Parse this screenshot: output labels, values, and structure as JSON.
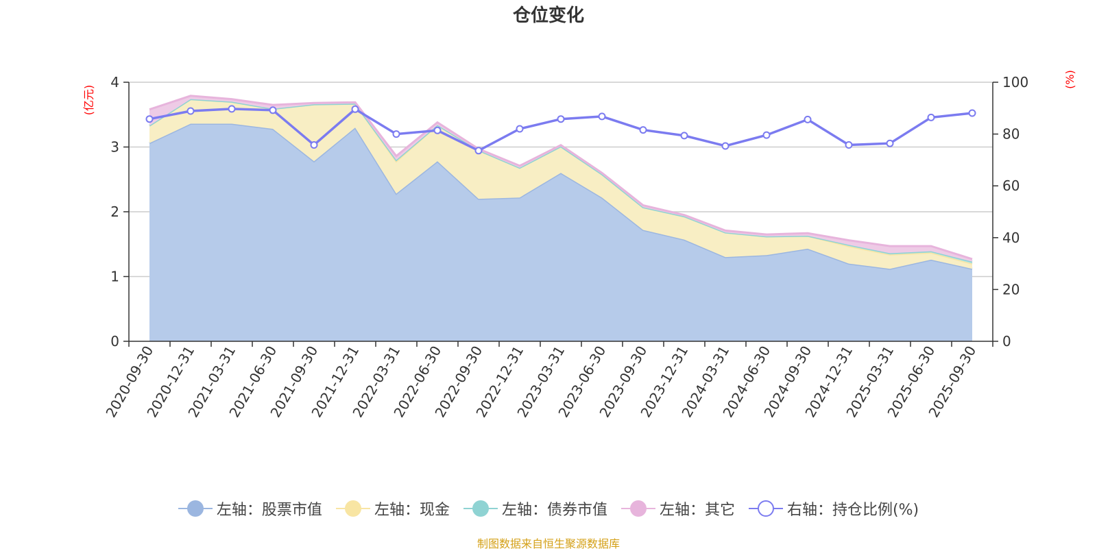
{
  "title": "仓位变化",
  "source": "制图数据来自恒生聚源数据库",
  "chart_data": {
    "type": "area",
    "title": "仓位变化",
    "categories": [
      "2020-09-30",
      "2020-12-31",
      "2021-03-31",
      "2021-06-30",
      "2021-09-30",
      "2021-12-31",
      "2022-03-31",
      "2022-06-30",
      "2022-09-30",
      "2022-12-31",
      "2023-03-31",
      "2023-06-30",
      "2023-09-30",
      "2023-12-31",
      "2024-03-31",
      "2024-06-30",
      "2024-09-30",
      "2024-12-31",
      "2025-03-31",
      "2025-06-30",
      "2025-09-30"
    ],
    "left_axis": {
      "unit": "(亿元)",
      "ylim": [
        0,
        4
      ],
      "ticks": [
        0,
        1,
        2,
        3,
        4
      ]
    },
    "right_axis": {
      "unit": "(%)",
      "ylim": [
        0,
        100
      ],
      "ticks": [
        0,
        20,
        40,
        60,
        80,
        100
      ]
    },
    "grid": true,
    "legend_position": "bottom",
    "series": [
      {
        "name": "左轴：股票市值",
        "axis": "left",
        "stack": "total",
        "color": "#9bb6e0",
        "fill": "#b6cbea",
        "values": [
          3.06,
          3.36,
          3.36,
          3.28,
          2.78,
          3.3,
          2.28,
          2.78,
          2.2,
          2.22,
          2.6,
          2.22,
          1.72,
          1.57,
          1.3,
          1.33,
          1.43,
          1.2,
          1.12,
          1.26,
          1.12
        ]
      },
      {
        "name": "左轴：现金",
        "axis": "left",
        "stack": "total",
        "color": "#f8e5a3",
        "fill": "#f8eec4",
        "values": [
          0.27,
          0.38,
          0.34,
          0.31,
          0.88,
          0.37,
          0.5,
          0.56,
          0.75,
          0.46,
          0.41,
          0.36,
          0.35,
          0.36,
          0.38,
          0.29,
          0.2,
          0.27,
          0.22,
          0.11,
          0.08
        ]
      },
      {
        "name": "左轴：债券市值",
        "axis": "left",
        "stack": "total",
        "color": "#8fd3d3",
        "fill": "#b9e4e2",
        "values": [
          0.0,
          0.0,
          0.0,
          0.0,
          0.0,
          0.0,
          0.02,
          0.0,
          0.0,
          0.0,
          0.0,
          0.0,
          0.0,
          0.0,
          0.0,
          0.0,
          0.0,
          0.02,
          0.02,
          0.02,
          0.03
        ]
      },
      {
        "name": "左轴：其它",
        "axis": "left",
        "stack": "total",
        "color": "#e7b4dc",
        "fill": "#eecbe6",
        "values": [
          0.25,
          0.05,
          0.04,
          0.06,
          0.02,
          0.02,
          0.06,
          0.04,
          0.02,
          0.03,
          0.02,
          0.02,
          0.03,
          0.02,
          0.03,
          0.03,
          0.04,
          0.07,
          0.11,
          0.08,
          0.04
        ]
      },
      {
        "name": "右轴：持仓比例(%)",
        "axis": "right",
        "type": "line",
        "color": "#7b7bf0",
        "values": [
          85.8,
          88.9,
          89.7,
          89.2,
          75.8,
          89.6,
          80.0,
          81.4,
          73.6,
          82.0,
          85.8,
          86.8,
          81.6,
          79.4,
          75.4,
          79.6,
          85.6,
          75.8,
          76.4,
          86.4,
          88.1
        ]
      }
    ]
  }
}
